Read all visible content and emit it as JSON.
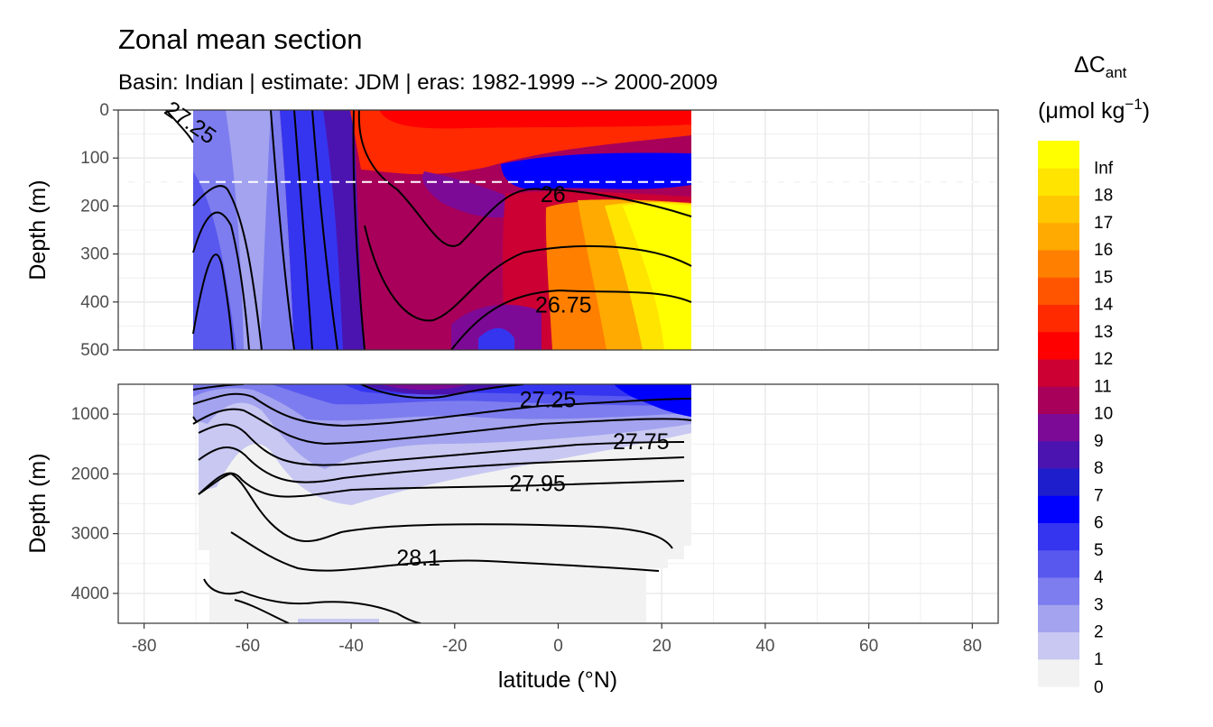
{
  "chart_data": {
    "type": "heatmap",
    "title": "Zonal mean section",
    "subtitle": "Basin: Indian | estimate: JDM  | eras: 1982-1999 --> 2000-2009",
    "xlabel": "latitude (°N)",
    "ylabel": "Depth (m)",
    "xlim": [
      -85,
      85
    ],
    "x_ticks": [
      -80,
      -60,
      -40,
      -20,
      0,
      20,
      40,
      60,
      80
    ],
    "x_tick_labels": [
      "-80",
      "-60",
      "-40",
      "-20",
      "0",
      "20",
      "40",
      "60",
      "80"
    ],
    "data_lat_range": [
      -70,
      25.5
    ],
    "panels": [
      {
        "name": "upper",
        "ylim": [
          0,
          500
        ],
        "y_ticks": [
          0,
          100,
          200,
          300,
          400,
          500
        ],
        "y_tick_labels": [
          "0",
          "100",
          "200",
          "300",
          "400",
          "500"
        ],
        "reference_depth": 150,
        "contour_labels": [
          {
            "text": "27.25",
            "lat": -71,
            "depth": 25
          },
          {
            "text": "26",
            "lat": -1,
            "depth": 175
          },
          {
            "text": "26.75",
            "lat": 1,
            "depth": 405
          }
        ]
      },
      {
        "name": "lower",
        "ylim": [
          500,
          4500
        ],
        "y_ticks": [
          1000,
          2000,
          3000,
          4000
        ],
        "y_tick_labels": [
          "1000",
          "2000",
          "3000",
          "4000"
        ],
        "contour_labels": [
          {
            "text": "27.25",
            "lat": -2,
            "depth": 750
          },
          {
            "text": "27.75",
            "lat": 16,
            "depth": 1450
          },
          {
            "text": "27.95",
            "lat": -4,
            "depth": 2150
          },
          {
            "text": "28.1",
            "lat": -27,
            "depth": 3400
          }
        ]
      }
    ],
    "legend": {
      "title_main": "ΔC",
      "title_sub": "ant",
      "unit_open": "(μmol kg",
      "unit_sup": "−1",
      "unit_close": ")",
      "levels": [
        "0",
        "1",
        "2",
        "3",
        "4",
        "5",
        "6",
        "7",
        "8",
        "9",
        "10",
        "11",
        "12",
        "13",
        "14",
        "15",
        "16",
        "17",
        "18",
        "Inf"
      ],
      "colors": [
        "#f2f2f2",
        "#c8c8f2",
        "#a3a3ef",
        "#7d7def",
        "#5858ef",
        "#3535f0",
        "#0000ff",
        "#1e1ecc",
        "#4b14b0",
        "#7d0a96",
        "#a8005a",
        "#cc0033",
        "#ff0000",
        "#ff2a00",
        "#ff5500",
        "#ff7f00",
        "#ffaa00",
        "#ffc800",
        "#ffe400",
        "#ffff00"
      ],
      "position": "right"
    }
  }
}
